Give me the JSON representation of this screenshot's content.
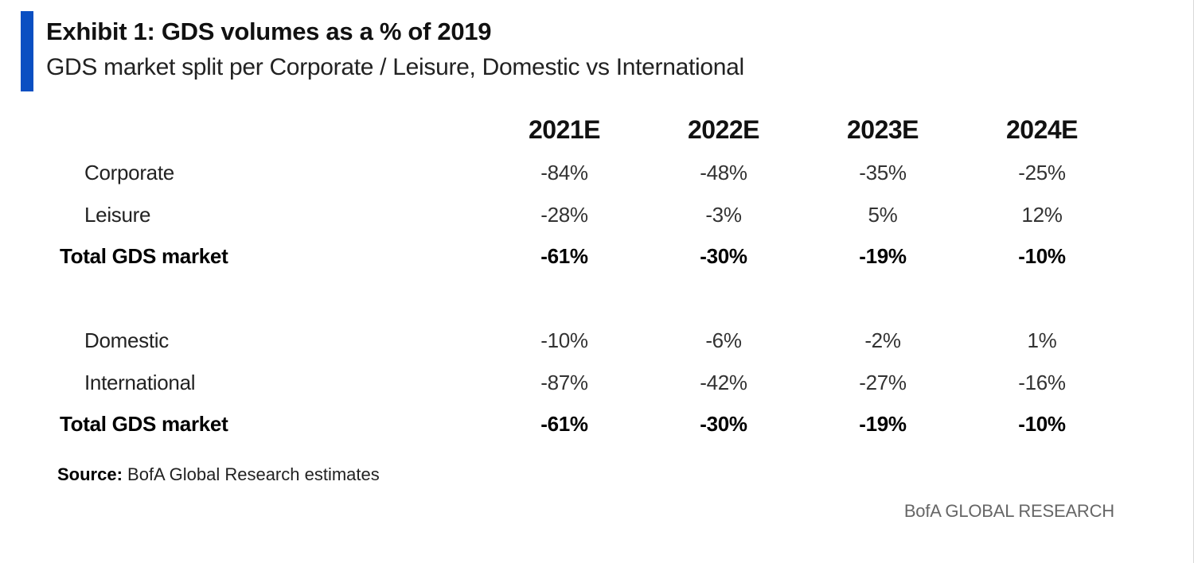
{
  "colors": {
    "accent": "#0a4fc2",
    "text": "#111111",
    "muted": "#666666"
  },
  "exhibit": {
    "title": "Exhibit 1: GDS volumes as a % of 2019",
    "subtitle": "GDS market split per Corporate / Leisure, Domestic vs International"
  },
  "table": {
    "columns": [
      "2021E",
      "2022E",
      "2023E",
      "2024E"
    ],
    "rows": [
      {
        "label": "Corporate",
        "values": [
          "-84%",
          "-48%",
          "-35%",
          "-25%"
        ]
      },
      {
        "label": "Leisure",
        "values": [
          "-28%",
          "-3%",
          "5%",
          "12%"
        ]
      },
      {
        "label": "Total GDS market",
        "values": [
          "-61%",
          "-30%",
          "-19%",
          "-10%"
        ]
      },
      {
        "label": "Domestic",
        "values": [
          "-10%",
          "-6%",
          "-2%",
          "1%"
        ]
      },
      {
        "label": "International",
        "values": [
          "-87%",
          "-42%",
          "-27%",
          "-16%"
        ]
      },
      {
        "label": "Total GDS market",
        "values": [
          "-61%",
          "-30%",
          "-19%",
          "-10%"
        ]
      }
    ]
  },
  "source": {
    "label": "Source:",
    "text": " BofA Global Research estimates"
  },
  "footer": {
    "brand": "BofA GLOBAL RESEARCH"
  }
}
